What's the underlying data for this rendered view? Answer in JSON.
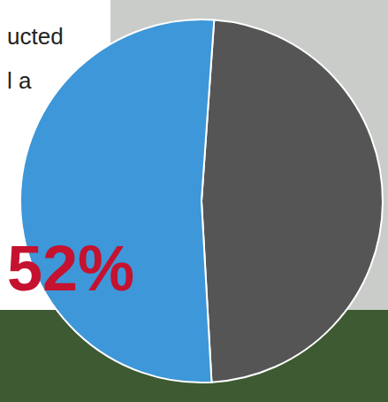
{
  "chart_data": {
    "type": "pie",
    "values": [
      52,
      48
    ],
    "value_labels": [
      "52%",
      null
    ],
    "colors": [
      "#3d97d8",
      "#555555"
    ],
    "data_labels": true,
    "annotations": [
      "ucted",
      "l a"
    ]
  }
}
